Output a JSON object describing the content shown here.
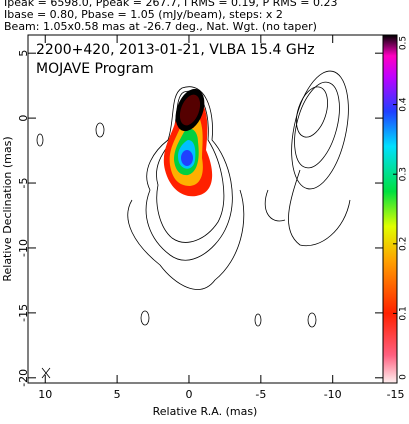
{
  "chart_data": {
    "type": "image",
    "header": [
      "Ipeak = 6598.0, Ppeak = 267.7, I RMS = 0.19, P RMS = 0.23",
      "Ibase = 0.80, Pbase = 1.05 (mJy/beam), steps: x 2",
      "Beam: 1.05x0.58 mas at -26.7 deg., Nat. Wgt. (no taper)"
    ],
    "title": "2200+420, 2013-01-21, VLBA 15.4 GHz",
    "subtitle": "MOJAVE Program",
    "xlabel": "Relative R.A. (mas)",
    "ylabel": "Relative Declination (mas)",
    "xlim": [
      11.2,
      -13.5
    ],
    "xticks": [
      10,
      5,
      0,
      -5,
      -10,
      -15
    ],
    "ylim": [
      -20.4,
      6.4
    ],
    "yticks": [
      5,
      0,
      -5,
      -10,
      -15,
      -20
    ],
    "colorbar": {
      "lim": [
        0,
        0.5
      ],
      "ticks": [
        0,
        0.1,
        0.2,
        0.3,
        0.4,
        0.5
      ]
    }
  }
}
